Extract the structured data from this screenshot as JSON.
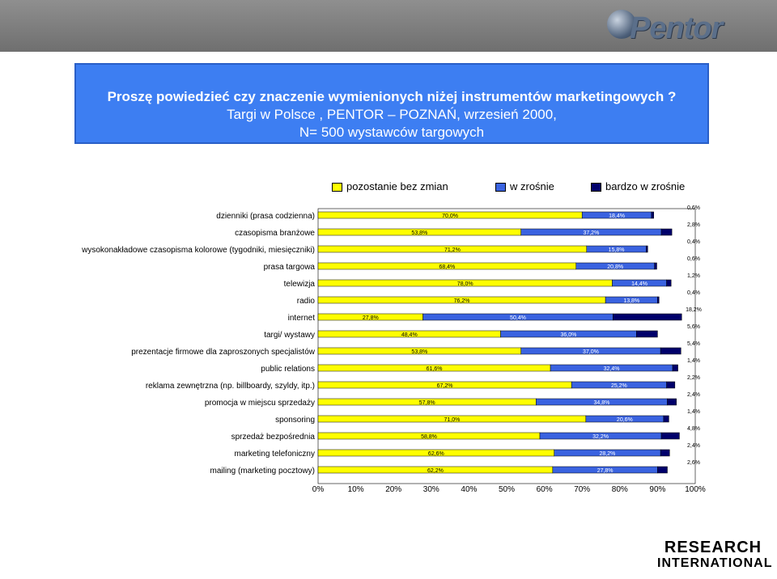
{
  "header": {
    "logo_text": "Pentor"
  },
  "title": {
    "line1": "Proszę powiedzieć czy znaczenie wymienionych niżej  instrumentów marketingowych ?",
    "line2": "Targi w Polsce , PENTOR – POZNAŃ, wrzesień 2000,",
    "line3": "N=  500 wystawców targowych"
  },
  "footer": {
    "line1": "RESEARCH",
    "line2": "INTERNATIONAL"
  },
  "colors": {
    "no_change": "#ffff00",
    "increase": "#3a63e0",
    "strong_increase": "#00006b",
    "title_bg": "#3d7ef2"
  },
  "chart_data": {
    "type": "bar",
    "orientation": "horizontal",
    "stacked": true,
    "legend": [
      "pozostanie bez zmian",
      "w zrośnie",
      "bardzo w zrośnie"
    ],
    "legend_position": "top",
    "categories": [
      "dzienniki (prasa codzienna)",
      "czasopisma branżowe",
      "wysokonakładowe czasopisma kolorowe (tygodniki, miesięczniki)",
      "prasa targowa",
      "telewizja",
      "radio",
      "internet",
      "targi/ wystawy",
      "prezentacje firmowe dla zaproszonych specjalistów",
      "public relations",
      "reklama zewnętrzna (np. billboardy, szyldy, itp.)",
      "promocja w miejscu sprzedaży",
      "sponsoring",
      "sprzedaż bezpośrednia",
      "marketing telefoniczny",
      "mailing (marketing pocztowy)"
    ],
    "series": [
      {
        "name": "pozostanie bez zmian",
        "values": [
          70.0,
          53.8,
          71.2,
          68.4,
          78.0,
          76.2,
          27.8,
          48.4,
          53.8,
          61.6,
          67.2,
          57.8,
          71.0,
          58.8,
          62.6,
          62.2
        ]
      },
      {
        "name": "w zrośnie",
        "values": [
          18.4,
          37.2,
          15.8,
          20.8,
          14.4,
          13.8,
          50.4,
          36.0,
          37.0,
          32.4,
          25.2,
          34.8,
          20.6,
          32.2,
          28.2,
          27.8
        ]
      },
      {
        "name": "bardzo w zrośnie",
        "values": [
          0.6,
          2.8,
          0.4,
          0.6,
          1.2,
          0.4,
          18.2,
          5.6,
          5.4,
          1.4,
          2.2,
          2.4,
          1.4,
          4.8,
          2.4,
          2.6
        ]
      }
    ],
    "labels_no_change": [
      "70,0%",
      "53,8%",
      "71,2%",
      "68,4%",
      "78,0%",
      "76,2%",
      "27,8%",
      "48,4%",
      "53,8%",
      "61,6%",
      "67,2%",
      "57,8%",
      "71,0%",
      "58,8%",
      "62,6%",
      "62,2%"
    ],
    "labels_increase": [
      "18,4%",
      "37,2%",
      "15,8%",
      "20,8%",
      "14,4%",
      "13,8%",
      "50,4%",
      "36,0%",
      "37,0%",
      "32,4%",
      "25,2%",
      "34,8%",
      "20,6%",
      "32,2%",
      "28,2%",
      "27,8%"
    ],
    "labels_strong": [
      "0,6%",
      "2,8%",
      "0,4%",
      "0,6%",
      "1,2%",
      "0,4%",
      "18,2%",
      "5,6%",
      "5,4%",
      "1,4%",
      "2,2%",
      "2,4%",
      "1,4%",
      "4,8%",
      "2,4%",
      "2,6%"
    ],
    "xlim": [
      0,
      100
    ],
    "x_ticks": [
      "0%",
      "10%",
      "20%",
      "30%",
      "40%",
      "50%",
      "60%",
      "70%",
      "80%",
      "90%",
      "100%"
    ]
  }
}
